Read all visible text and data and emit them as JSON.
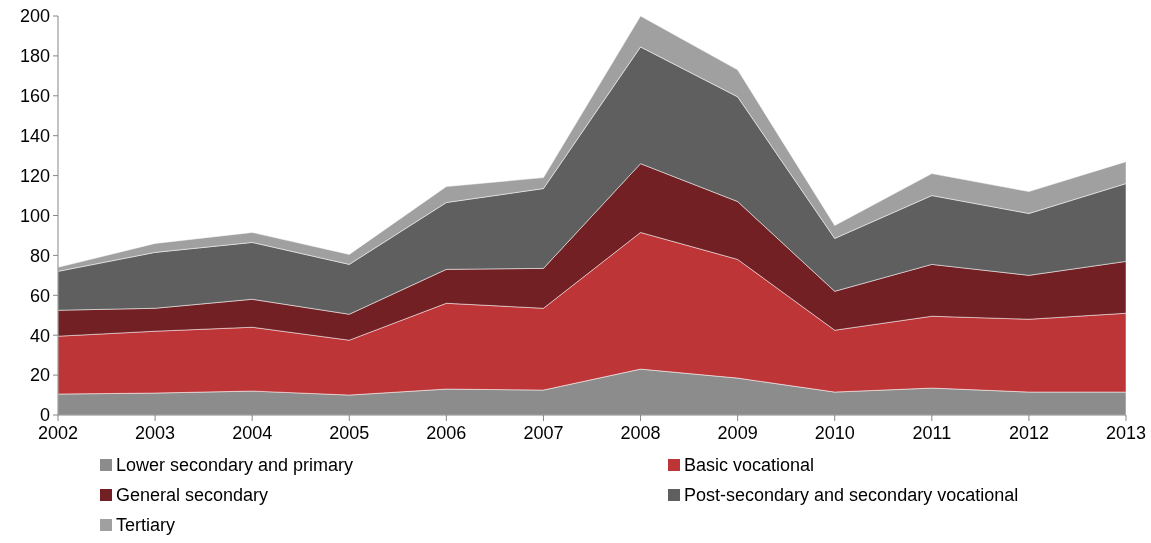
{
  "chart_data": {
    "type": "area",
    "stacked": true,
    "categories": [
      "2002",
      "2003",
      "2004",
      "2005",
      "2006",
      "2007",
      "2008",
      "2009",
      "2010",
      "2011",
      "2012",
      "2013"
    ],
    "series": [
      {
        "name": "Lower secondary and primary",
        "color": "#8c8c8c",
        "values": [
          10.5,
          11,
          12,
          10,
          13,
          12.5,
          23,
          18.5,
          11.5,
          13.5,
          11.5,
          11.5
        ]
      },
      {
        "name": "Basic vocational",
        "color": "#be3537",
        "values": [
          29,
          31,
          32,
          27.5,
          43,
          41,
          68.5,
          59.5,
          31,
          36,
          36.5,
          39.5
        ]
      },
      {
        "name": "General secondary",
        "color": "#722023",
        "values": [
          13,
          11.5,
          14,
          13,
          17,
          20,
          34.5,
          29,
          19.5,
          26,
          22,
          26
        ]
      },
      {
        "name": "Post-secondary and secondary vocational",
        "color": "#5f5f5f",
        "values": [
          19.5,
          28,
          28.5,
          25,
          33.5,
          40,
          58.5,
          52.5,
          26.5,
          34.5,
          31,
          39
        ]
      },
      {
        "name": "Tertiary",
        "color": "#a0a0a0",
        "values": [
          2,
          4.5,
          5,
          5,
          8,
          5.5,
          15.5,
          13.5,
          6.5,
          11,
          11,
          11
        ]
      }
    ],
    "ylim": [
      0,
      200
    ],
    "yticks": [
      0,
      20,
      40,
      60,
      80,
      100,
      120,
      140,
      160,
      180,
      200
    ],
    "legend": "bottom",
    "grid": false
  }
}
